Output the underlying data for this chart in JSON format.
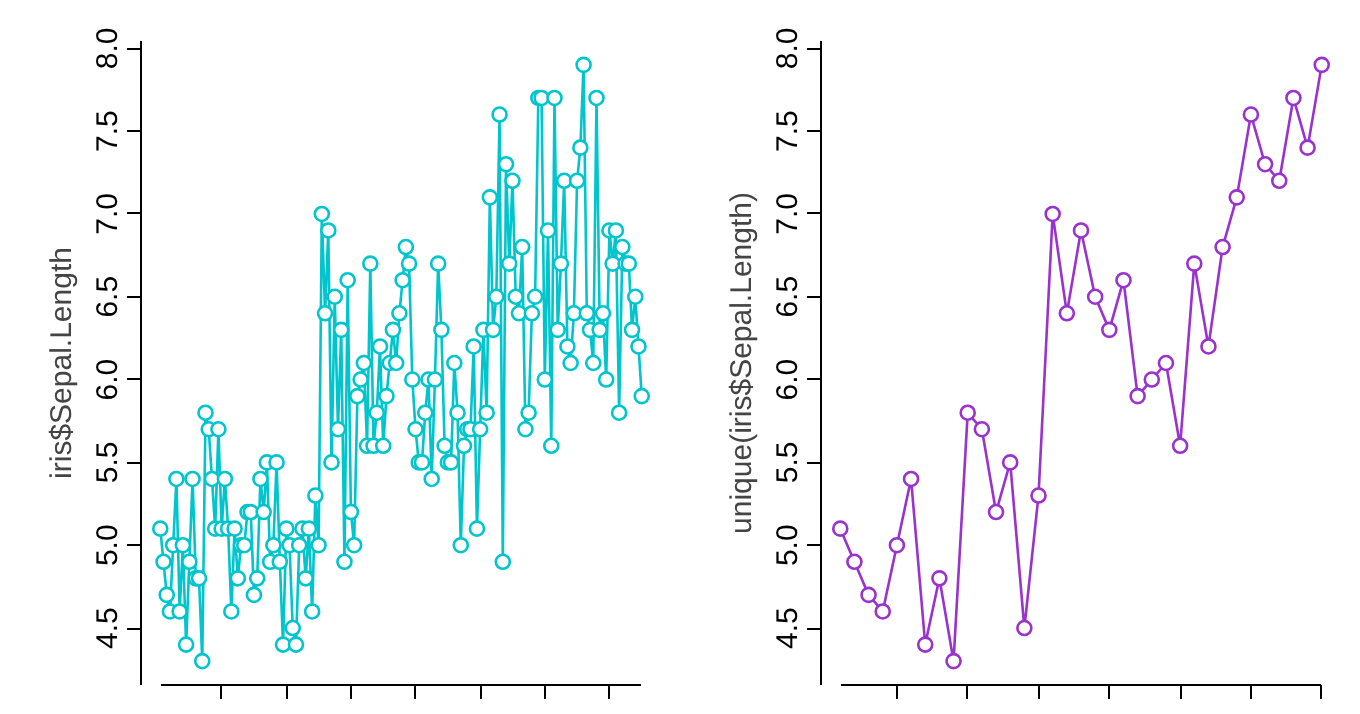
{
  "chart_data": [
    {
      "type": "line",
      "ylabel": "iris$Sepal.Length",
      "marker": "circle",
      "grid": false,
      "tick_labels": "y",
      "categories": [
        null,
        null,
        null,
        null,
        null,
        null,
        null,
        null,
        null,
        null,
        null,
        null,
        null,
        null,
        null,
        null,
        null,
        null,
        null,
        null,
        null,
        null,
        null,
        null,
        null,
        null,
        null,
        null,
        null,
        null,
        null,
        null,
        null,
        null,
        null,
        null,
        null,
        null,
        null,
        null,
        null,
        null,
        null,
        null,
        null,
        null,
        null,
        null,
        null,
        null,
        null,
        null,
        null,
        null,
        null,
        null,
        null,
        null,
        null,
        null,
        null,
        null,
        null,
        null,
        null,
        null,
        null,
        null,
        null,
        null,
        null,
        null,
        null,
        null,
        null,
        null,
        null,
        null,
        null,
        null,
        null,
        null,
        null,
        null,
        null,
        null,
        null,
        null,
        null,
        null,
        null,
        null,
        null,
        null,
        null,
        null,
        null,
        null,
        null,
        null,
        null,
        null,
        null,
        null,
        null,
        null,
        null,
        null,
        null,
        null,
        null,
        null,
        null,
        null,
        null,
        null,
        null,
        null,
        null,
        null,
        null,
        null,
        null,
        null,
        null,
        null,
        null,
        null,
        null,
        null,
        null,
        null,
        null,
        null,
        null,
        null,
        null,
        null,
        null,
        null,
        null,
        null,
        null,
        null,
        null,
        null,
        null,
        null,
        null,
        null
      ],
      "series": [
        {
          "color": "#00c5cd",
          "values": [
            5.1,
            4.9,
            4.7,
            4.6,
            5.0,
            5.4,
            4.6,
            5.0,
            4.4,
            4.9,
            5.4,
            4.8,
            4.8,
            4.3,
            5.8,
            5.7,
            5.4,
            5.1,
            5.7,
            5.1,
            5.4,
            5.1,
            4.6,
            5.1,
            4.8,
            5.0,
            5.0,
            5.2,
            5.2,
            4.7,
            4.8,
            5.4,
            5.2,
            5.5,
            4.9,
            5.0,
            5.5,
            4.9,
            4.4,
            5.1,
            5.0,
            4.5,
            4.4,
            5.0,
            5.1,
            4.8,
            5.1,
            4.6,
            5.3,
            5.0,
            7.0,
            6.4,
            6.9,
            5.5,
            6.5,
            5.7,
            6.3,
            4.9,
            6.6,
            5.2,
            5.0,
            5.9,
            6.0,
            6.1,
            5.6,
            6.7,
            5.6,
            5.8,
            6.2,
            5.6,
            5.9,
            6.1,
            6.3,
            6.1,
            6.4,
            6.6,
            6.8,
            6.7,
            6.0,
            5.7,
            5.5,
            5.5,
            5.8,
            6.0,
            5.4,
            6.0,
            6.7,
            6.3,
            5.6,
            5.5,
            5.5,
            6.1,
            5.8,
            5.0,
            5.6,
            5.7,
            5.7,
            6.2,
            5.1,
            5.7,
            6.3,
            5.8,
            7.1,
            6.3,
            6.5,
            7.6,
            4.9,
            7.3,
            6.7,
            7.2,
            6.5,
            6.4,
            6.8,
            5.7,
            5.8,
            6.4,
            6.5,
            7.7,
            7.7,
            6.0,
            6.9,
            5.6,
            7.7,
            6.3,
            6.7,
            7.2,
            6.2,
            6.1,
            6.4,
            7.2,
            7.4,
            7.9,
            6.4,
            6.3,
            6.1,
            7.7,
            6.3,
            6.4,
            6.0,
            6.9,
            6.7,
            6.9,
            5.8,
            6.8,
            6.7,
            6.7,
            6.3,
            6.5,
            6.2,
            5.9
          ]
        }
      ],
      "ylim": [
        4.156,
        8.044
      ],
      "yticks": [
        4.5,
        {
          "value": 5,
          "label": "5.0"
        },
        5.5,
        {
          "value": 6,
          "label": "6.0"
        },
        6.5,
        {
          "value": 7,
          "label": "7.0"
        },
        7.5,
        {
          "value": 8,
          "label": "8.0"
        }
      ]
    },
    {
      "type": "line",
      "ylabel": "unique(iris$Sepal.Length)",
      "marker": "circle",
      "grid": false,
      "tick_labels": "y",
      "categories": [
        null,
        null,
        null,
        null,
        null,
        null,
        null,
        null,
        null,
        null,
        null,
        null,
        null,
        null,
        null,
        null,
        null,
        null,
        null,
        null,
        null,
        null,
        null,
        null,
        null,
        null,
        null,
        null,
        null,
        null,
        null,
        null,
        null,
        null,
        null
      ],
      "series": [
        {
          "color": "#9a32cd",
          "values": [
            5.1,
            4.9,
            4.7,
            4.6,
            5.0,
            5.4,
            4.4,
            4.8,
            4.3,
            5.8,
            5.7,
            5.2,
            5.5,
            4.5,
            5.3,
            7.0,
            6.4,
            6.9,
            6.5,
            6.3,
            6.6,
            5.9,
            6.0,
            6.1,
            5.6,
            6.7,
            6.2,
            6.8,
            7.1,
            7.6,
            7.3,
            7.2,
            7.7,
            7.4,
            7.9
          ]
        }
      ],
      "ylim": [
        4.156,
        8.044
      ],
      "yticks": [
        4.5,
        {
          "value": 5,
          "label": "5.0"
        },
        5.5,
        {
          "value": 6,
          "label": "6.0"
        },
        6.5,
        {
          "value": 7,
          "label": "7.0"
        },
        7.5,
        {
          "value": 8,
          "label": "8.0"
        }
      ]
    }
  ]
}
